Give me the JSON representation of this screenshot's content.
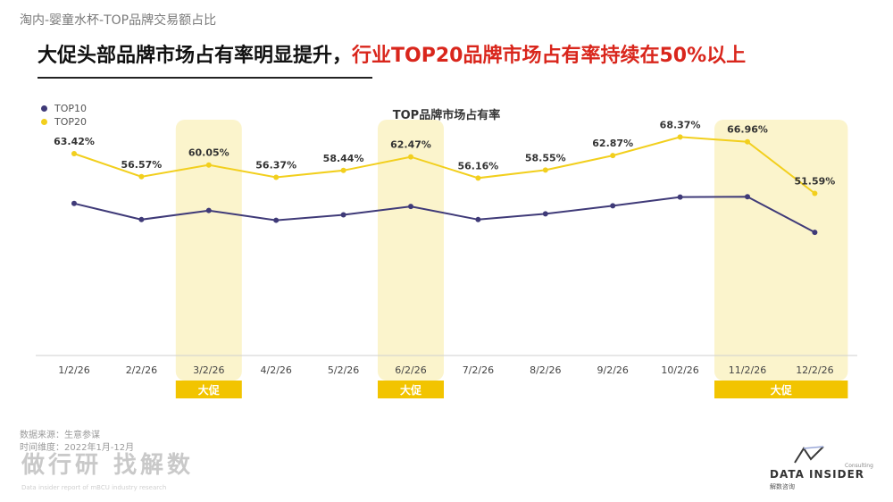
{
  "header": {
    "subtitle": "淘内-婴童水杯-TOP品牌交易额占比",
    "headline_black": "大促头部品牌市场占有率明显提升，",
    "headline_red": "行业TOP20品牌市场占有率持续在50%以上"
  },
  "colors": {
    "top10": "#3f3a78",
    "top20": "#f2cf1d",
    "promo_band": "#fbf4cc",
    "promo_label": "#f2c400"
  },
  "chart_data": {
    "type": "line",
    "title": "TOP品牌市场占有率",
    "categories": [
      "1/2/26",
      "2/2/26",
      "3/2/26",
      "4/2/26",
      "5/2/26",
      "6/2/26",
      "7/2/26",
      "8/2/26",
      "9/2/26",
      "10/2/26",
      "11/2/26",
      "12/2/26"
    ],
    "series": [
      {
        "name": "TOP10",
        "values": [
          48.6,
          43.8,
          46.5,
          43.6,
          45.2,
          47.7,
          43.8,
          45.5,
          47.9,
          50.5,
          50.6,
          40.0
        ],
        "labels": [
          "",
          "",
          "",
          "",
          "",
          "",
          "",
          "",
          "",
          "",
          "",
          ""
        ]
      },
      {
        "name": "TOP20",
        "values": [
          63.42,
          56.57,
          60.05,
          56.37,
          58.44,
          62.47,
          56.16,
          58.55,
          62.87,
          68.37,
          66.96,
          51.59
        ],
        "labels": [
          "63.42%",
          "56.57%",
          "60.05%",
          "56.37%",
          "58.44%",
          "62.47%",
          "56.16%",
          "58.55%",
          "62.87%",
          "68.37%",
          "66.96%",
          "51.59%"
        ]
      }
    ],
    "promotions": [
      {
        "label": "大促",
        "months": [
          2
        ]
      },
      {
        "label": "大促",
        "months": [
          5
        ]
      },
      {
        "label": "大促",
        "months": [
          10,
          11
        ]
      }
    ],
    "legend_position": "top-left",
    "grid": false
  },
  "footer": {
    "source": "数据来源：生意参谋",
    "period": "时间维度：2022年1月-12月",
    "watermark": "做行研 找解数",
    "brand": "DATA INSIDER",
    "brand_cn": "解数咨询",
    "brand_tag": "Consulting"
  }
}
